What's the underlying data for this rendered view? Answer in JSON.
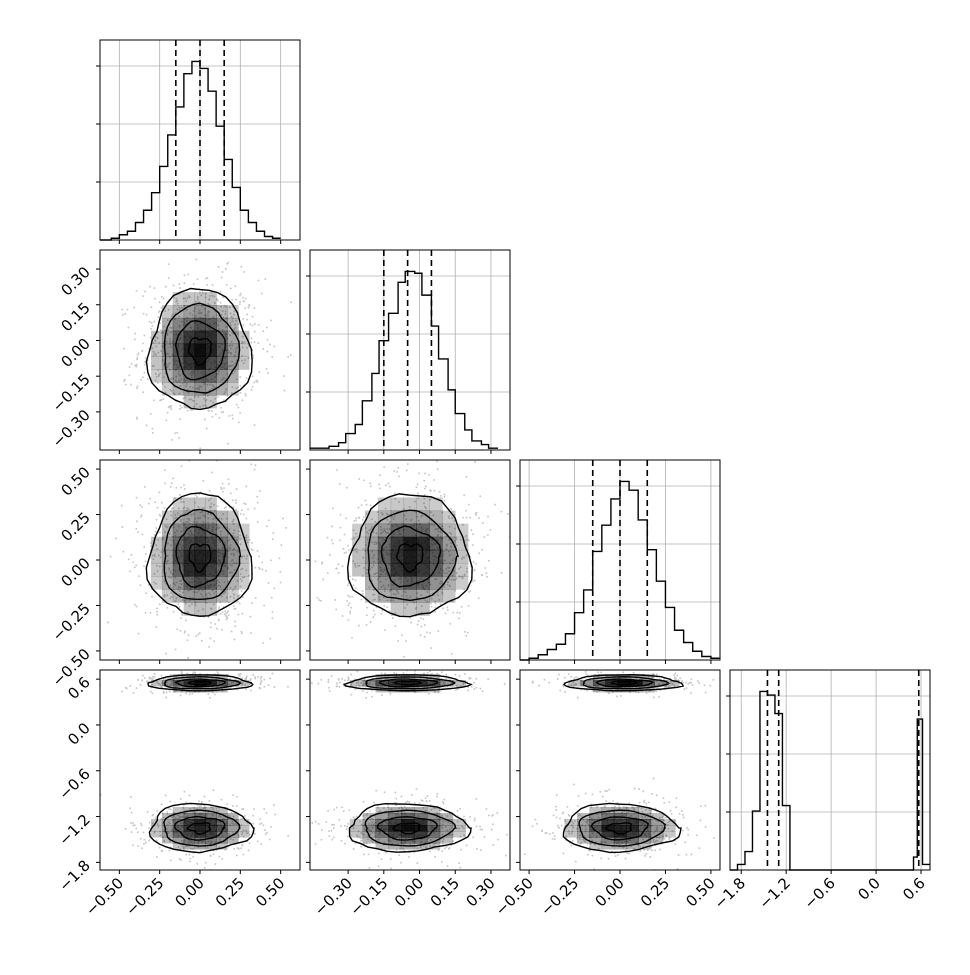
{
  "chart_data": {
    "type": "corner",
    "title": "",
    "colors": {
      "line": "#000000",
      "grid": "#b0b0b0",
      "hist2d": "#000000",
      "points": "#9a9a9a"
    },
    "grid": true,
    "params": [
      {
        "xlim": [
          -0.62,
          0.62
        ],
        "ylim": [
          -0.46,
          0.38
        ],
        "ticks": [
          -0.5,
          -0.25,
          0.0,
          0.25,
          0.5
        ],
        "tick_labels": [
          "−0.50",
          "−0.25",
          "0.00",
          "0.25",
          "0.50"
        ],
        "quantiles": [
          -0.15,
          0.0,
          0.15
        ]
      },
      {
        "xlim": [
          -0.46,
          0.38
        ],
        "ylim": [
          -0.46,
          0.38
        ],
        "ticks": [
          -0.3,
          -0.15,
          0.0,
          0.15,
          0.3
        ],
        "tick_labels": [
          "−0.30",
          "−0.15",
          "0.00",
          "0.15",
          "0.30"
        ],
        "quantiles": [
          -0.15,
          -0.05,
          0.05
        ]
      },
      {
        "xlim": [
          -0.55,
          0.55
        ],
        "ylim": [
          -0.55,
          0.55
        ],
        "ticks": [
          -0.5,
          -0.25,
          0.0,
          0.25,
          0.5
        ],
        "tick_labels": [
          "−0.50",
          "−0.25",
          "0.00",
          "0.25",
          "0.50"
        ],
        "quantiles": [
          -0.15,
          0.0,
          0.15
        ]
      },
      {
        "xlim": [
          -1.95,
          0.72
        ],
        "ylim": [
          -1.9,
          0.72
        ],
        "ticks": [
          -1.8,
          -1.2,
          -0.6,
          0.0,
          0.6
        ],
        "tick_labels": [
          "−1.8",
          "−1.2",
          "−0.6",
          "0.0",
          "0.6"
        ],
        "quantiles": [
          -1.45,
          -1.3,
          0.57
        ]
      }
    ],
    "histograms": [
      {
        "edges": [
          -0.62,
          -0.55,
          -0.5,
          -0.45,
          -0.4,
          -0.35,
          -0.3,
          -0.25,
          -0.2,
          -0.15,
          -0.1,
          -0.05,
          0.0,
          0.05,
          0.1,
          0.15,
          0.2,
          0.25,
          0.3,
          0.35,
          0.4,
          0.45,
          0.5
        ],
        "counts": [
          0,
          1,
          3,
          5,
          10,
          17,
          27,
          42,
          60,
          76,
          95,
          102,
          98,
          85,
          65,
          46,
          30,
          17,
          10,
          5,
          2,
          1
        ]
      },
      {
        "edges": [
          -0.46,
          -0.41,
          -0.38,
          -0.34,
          -0.31,
          -0.27,
          -0.24,
          -0.2,
          -0.17,
          -0.13,
          -0.09,
          -0.06,
          -0.02,
          0.01,
          0.05,
          0.08,
          0.12,
          0.15,
          0.19,
          0.22,
          0.26,
          0.29,
          0.33
        ],
        "counts": [
          1,
          1,
          2,
          4,
          9,
          14,
          27,
          42,
          60,
          75,
          92,
          98,
          97,
          85,
          68,
          50,
          33,
          20,
          11,
          5,
          3,
          1
        ]
      },
      {
        "edges": [
          -0.55,
          -0.5,
          -0.45,
          -0.4,
          -0.35,
          -0.3,
          -0.25,
          -0.2,
          -0.15,
          -0.1,
          -0.05,
          0.0,
          0.05,
          0.1,
          0.15,
          0.2,
          0.25,
          0.3,
          0.35,
          0.4,
          0.45,
          0.5,
          0.55
        ],
        "counts": [
          0,
          1,
          3,
          6,
          9,
          15,
          27,
          40,
          62,
          77,
          92,
          102,
          97,
          80,
          63,
          45,
          30,
          17,
          10,
          5,
          2,
          1
        ]
      },
      {
        "edges": [
          -1.95,
          -1.85,
          -1.75,
          -1.65,
          -1.55,
          -1.45,
          -1.35,
          -1.25,
          -1.15,
          -0.6,
          0.0,
          0.45,
          0.5,
          0.55,
          0.62,
          0.72
        ],
        "counts": [
          0,
          3,
          10,
          32,
          97,
          95,
          85,
          35,
          0,
          0,
          0,
          0,
          7,
          82,
          3
        ]
      }
    ],
    "pairs": [
      {
        "row": 1,
        "col": 0,
        "modes": [
          {
            "cx": 0.0,
            "cy": -0.04,
            "sx": 0.15,
            "sy": 0.12
          }
        ]
      },
      {
        "row": 2,
        "col": 0,
        "modes": [
          {
            "cx": 0.0,
            "cy": 0.02,
            "sx": 0.15,
            "sy": 0.16
          }
        ]
      },
      {
        "row": 2,
        "col": 1,
        "modes": [
          {
            "cx": -0.04,
            "cy": 0.02,
            "sx": 0.12,
            "sy": 0.16
          }
        ]
      },
      {
        "row": 3,
        "col": 0,
        "modes": [
          {
            "cx": 0.0,
            "cy": 0.55,
            "sx": 0.15,
            "sy": 0.05,
            "w": 0.45
          },
          {
            "cx": 0.0,
            "cy": -1.35,
            "sx": 0.15,
            "sy": 0.15,
            "w": 0.55
          }
        ]
      },
      {
        "row": 3,
        "col": 1,
        "modes": [
          {
            "cx": -0.05,
            "cy": 0.55,
            "sx": 0.12,
            "sy": 0.05,
            "w": 0.45
          },
          {
            "cx": -0.05,
            "cy": -1.35,
            "sx": 0.12,
            "sy": 0.15,
            "w": 0.55
          }
        ]
      },
      {
        "row": 3,
        "col": 2,
        "modes": [
          {
            "cx": 0.02,
            "cy": 0.55,
            "sx": 0.15,
            "sy": 0.05,
            "w": 0.45
          },
          {
            "cx": 0.0,
            "cy": -1.35,
            "sx": 0.15,
            "sy": 0.15,
            "w": 0.55
          }
        ]
      }
    ]
  }
}
